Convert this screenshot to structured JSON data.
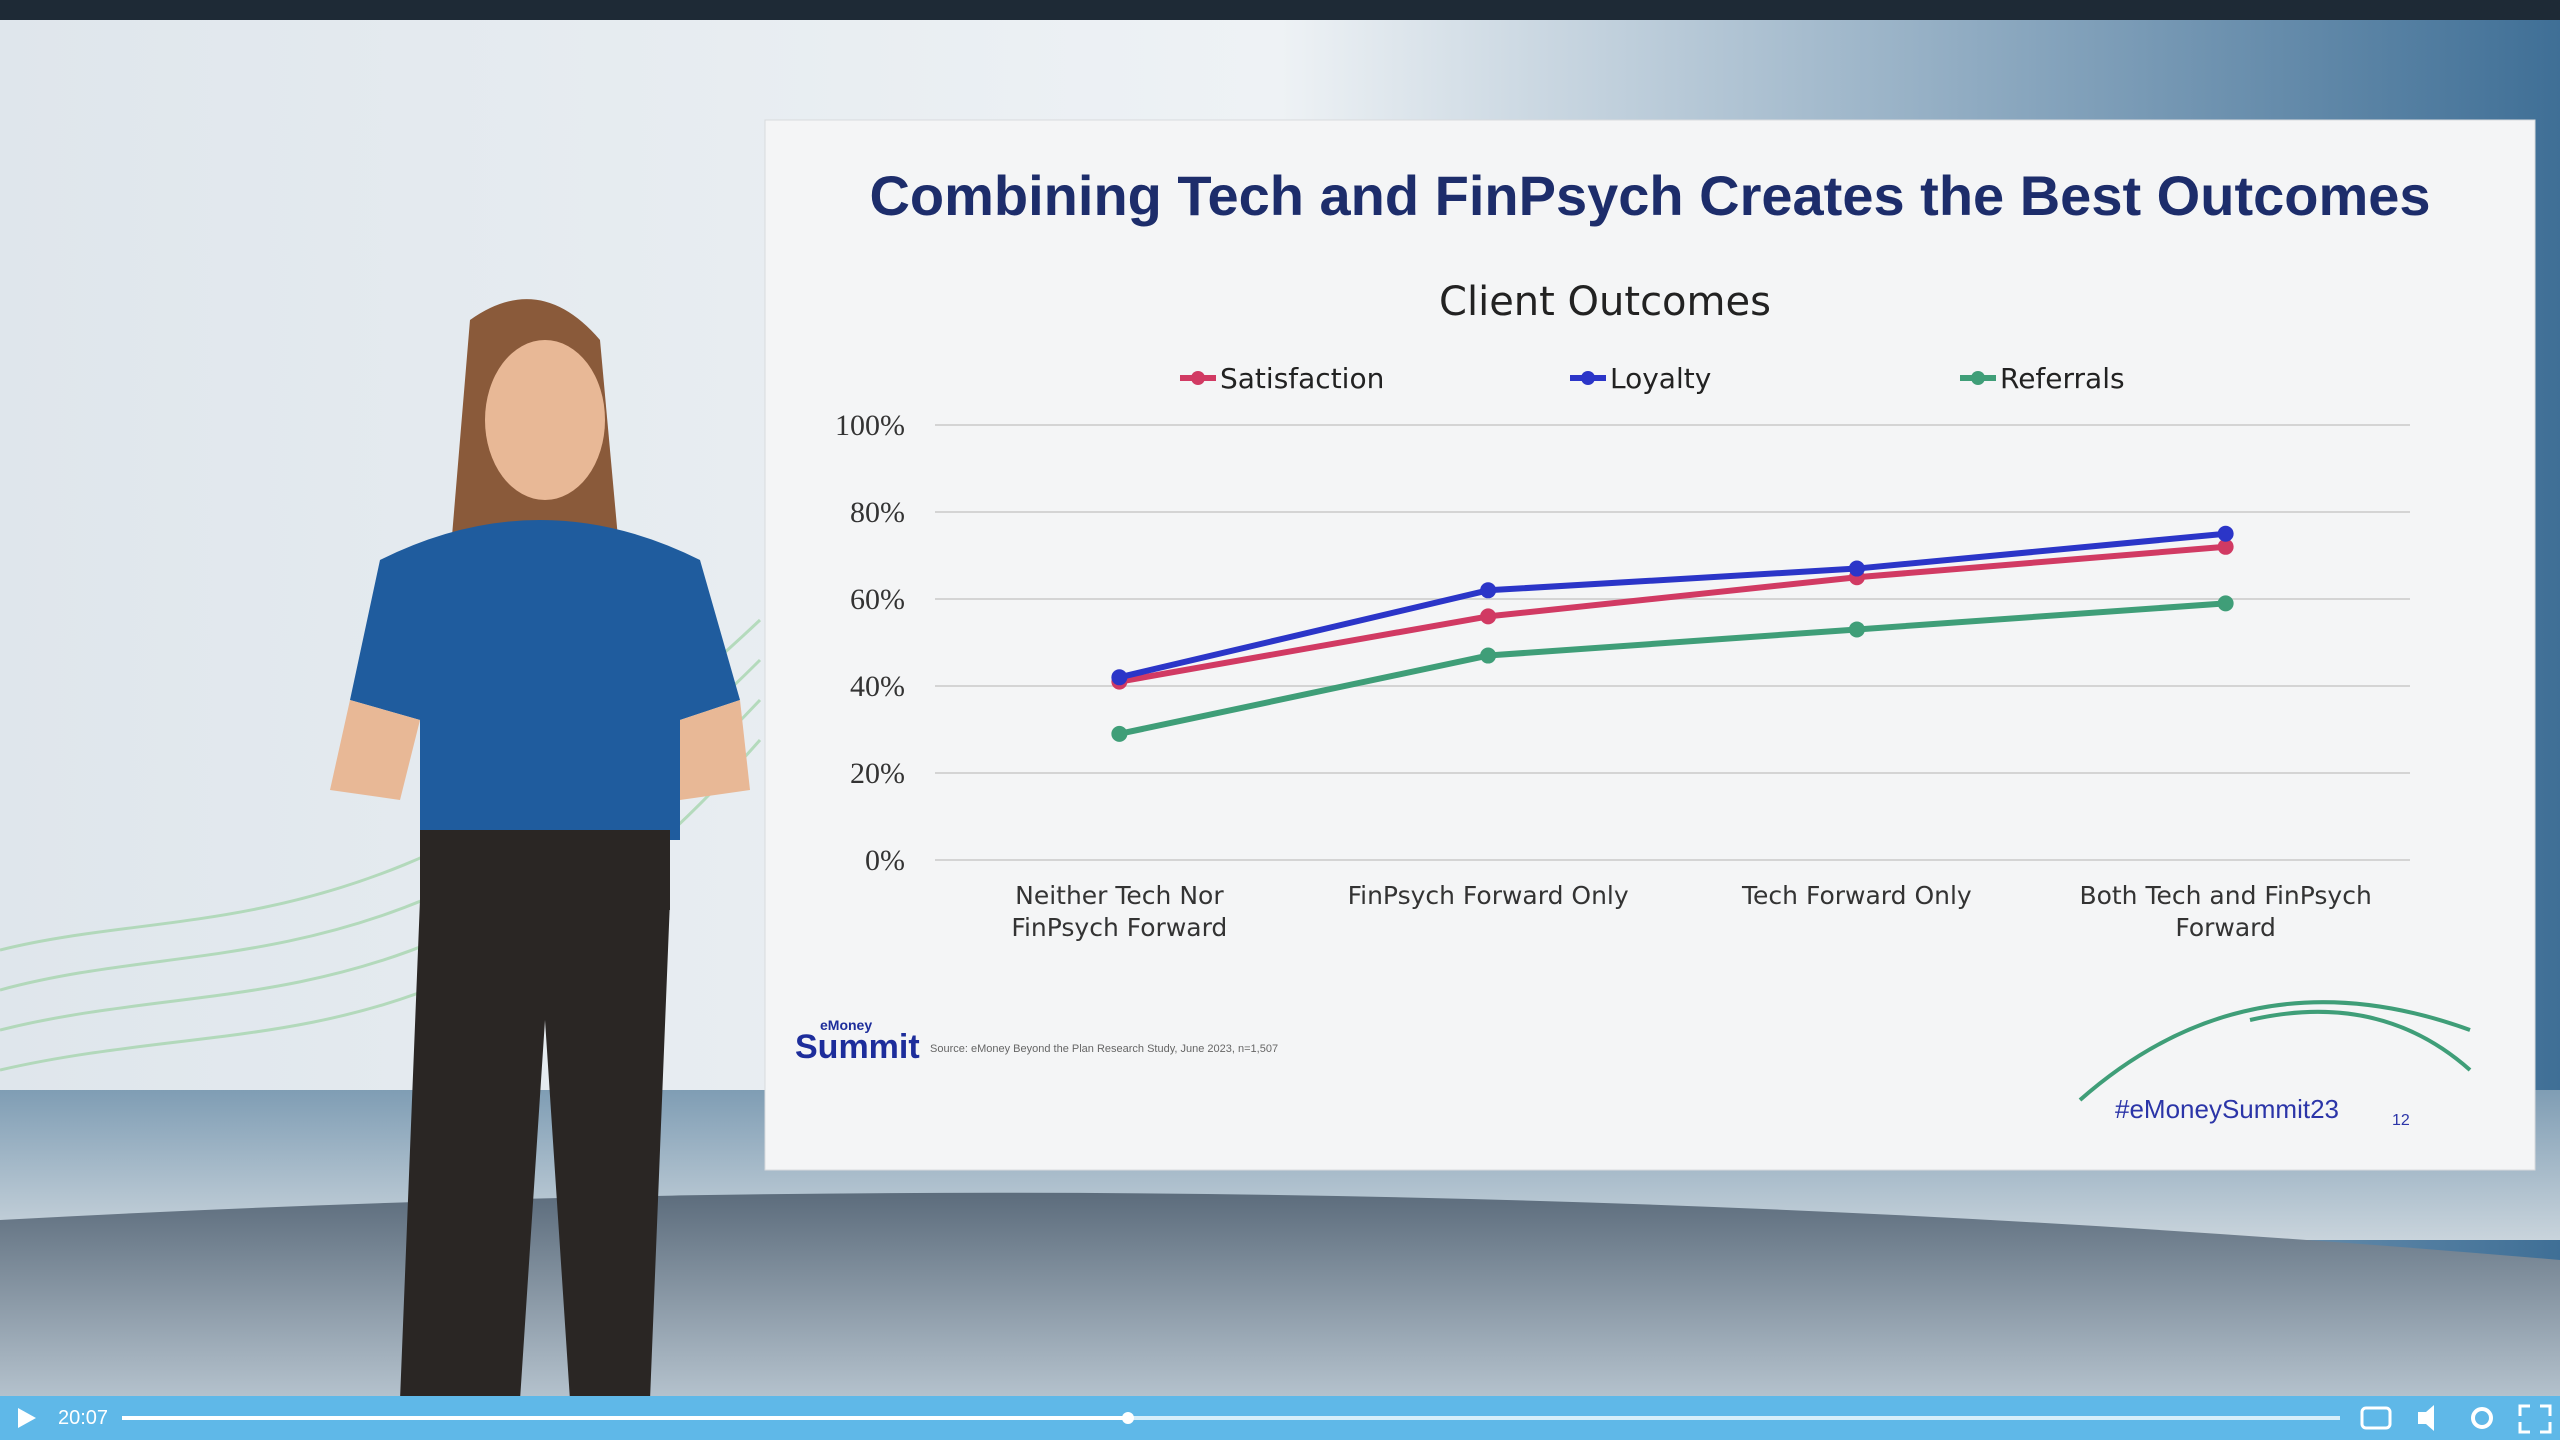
{
  "player": {
    "time": "20:07"
  },
  "slide": {
    "title": "Combining Tech and FinPsych Creates the Best Outcomes",
    "logo_small": "eMoney",
    "logo": "Summit",
    "source": "Source: eMoney Beyond the Plan Research Study, June 2023, n=1,507",
    "hashtag": "#eMoneySummit23",
    "page": "12"
  },
  "chart_data": {
    "type": "line",
    "title": "Client Outcomes",
    "categories": [
      "Neither Tech Nor FinPsych Forward",
      "FinPsych Forward Only",
      "Tech Forward Only",
      "Both Tech and FinPsych Forward"
    ],
    "series": [
      {
        "name": "Satisfaction",
        "color": "#d13a63",
        "values": [
          41,
          56,
          65,
          72
        ]
      },
      {
        "name": "Loyalty",
        "color": "#2b35c8",
        "values": [
          42,
          62,
          67,
          75
        ]
      },
      {
        "name": "Referrals",
        "color": "#3f9e78",
        "values": [
          29,
          47,
          53,
          59
        ]
      }
    ],
    "ylim": [
      0,
      100
    ],
    "yticks": [
      {
        "value": 0,
        "label": "0%"
      },
      {
        "value": 20,
        "label": "20%"
      },
      {
        "value": 40,
        "label": "40%"
      },
      {
        "value": 60,
        "label": "60%"
      },
      {
        "value": 80,
        "label": "80%"
      },
      {
        "value": 100,
        "label": "100%"
      }
    ],
    "grid": true,
    "legend": "top"
  }
}
